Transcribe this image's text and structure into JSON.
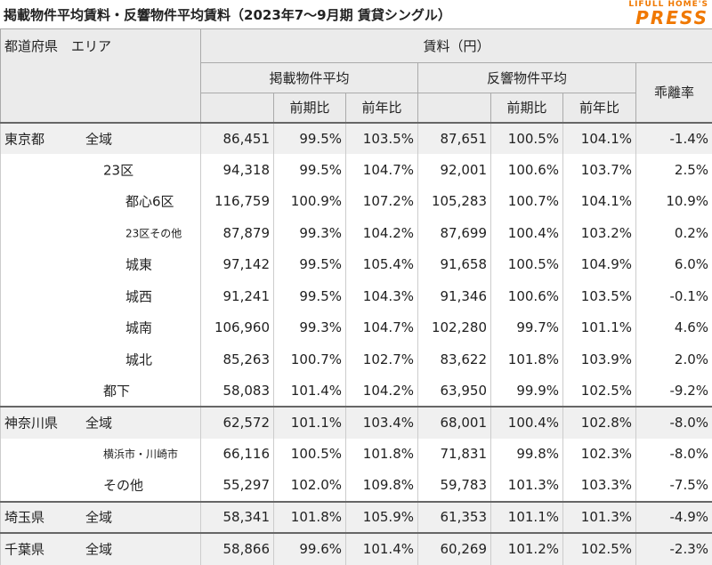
{
  "header": {
    "title": "掲載物件平均賃料・反響物件平均賃料（2023年7〜9月期 賃貸シングル）",
    "logo_top": "LIFULL HOME'S",
    "logo_bottom": "PRESS"
  },
  "table": {
    "corner": "都道府県　エリア",
    "rent": "賃料（円）",
    "listed": "掲載物件平均",
    "inquired": "反響物件平均",
    "gap": "乖離率",
    "qoq": [
      "前期比",
      "前期比"
    ],
    "yoy": [
      "前年比",
      "前年比"
    ],
    "rows": [
      {
        "prefecture": "東京都",
        "area": "全域",
        "cells": [
          "86,451",
          "99.5%",
          "103.5%",
          "87,651",
          "100.5%",
          "104.1%",
          "-1.4%"
        ]
      },
      {
        "area": "23区",
        "cells": [
          "94,318",
          "99.5%",
          "104.7%",
          "92,001",
          "100.6%",
          "103.7%",
          "2.5%"
        ]
      },
      {
        "area": "都心6区",
        "cells": [
          "116,759",
          "100.9%",
          "107.2%",
          "105,283",
          "100.7%",
          "104.1%",
          "10.9%"
        ]
      },
      {
        "area": "23区その他",
        "cells": [
          "87,879",
          "99.3%",
          "104.2%",
          "87,699",
          "100.4%",
          "103.2%",
          "0.2%"
        ]
      },
      {
        "area": "城東",
        "cells": [
          "97,142",
          "99.5%",
          "105.4%",
          "91,658",
          "100.5%",
          "104.9%",
          "6.0%"
        ]
      },
      {
        "area": "城西",
        "cells": [
          "91,241",
          "99.5%",
          "104.3%",
          "91,346",
          "100.6%",
          "103.5%",
          "-0.1%"
        ]
      },
      {
        "area": "城南",
        "cells": [
          "106,960",
          "99.3%",
          "104.7%",
          "102,280",
          "99.7%",
          "101.1%",
          "4.6%"
        ]
      },
      {
        "area": "城北",
        "cells": [
          "85,263",
          "100.7%",
          "102.7%",
          "83,622",
          "101.8%",
          "103.9%",
          "2.0%"
        ]
      },
      {
        "area": "都下",
        "cells": [
          "58,083",
          "101.4%",
          "104.2%",
          "63,950",
          "99.9%",
          "102.5%",
          "-9.2%"
        ]
      },
      {
        "prefecture": "神奈川県",
        "area": "全域",
        "cells": [
          "62,572",
          "101.1%",
          "103.4%",
          "68,001",
          "100.4%",
          "102.8%",
          "-8.0%"
        ]
      },
      {
        "area": "横浜市・川崎市",
        "cells": [
          "66,116",
          "100.5%",
          "101.8%",
          "71,831",
          "99.8%",
          "102.3%",
          "-8.0%"
        ]
      },
      {
        "area": "その他",
        "cells": [
          "55,297",
          "102.0%",
          "109.8%",
          "59,783",
          "101.3%",
          "103.3%",
          "-7.5%"
        ]
      },
      {
        "prefecture": "埼玉県",
        "area": "全域",
        "cells": [
          "58,341",
          "101.8%",
          "105.9%",
          "61,353",
          "101.1%",
          "101.3%",
          "-4.9%"
        ]
      },
      {
        "prefecture": "千葉県",
        "area": "全域",
        "cells": [
          "58,866",
          "99.6%",
          "101.4%",
          "60,269",
          "101.2%",
          "102.5%",
          "-2.3%"
        ]
      }
    ]
  }
}
